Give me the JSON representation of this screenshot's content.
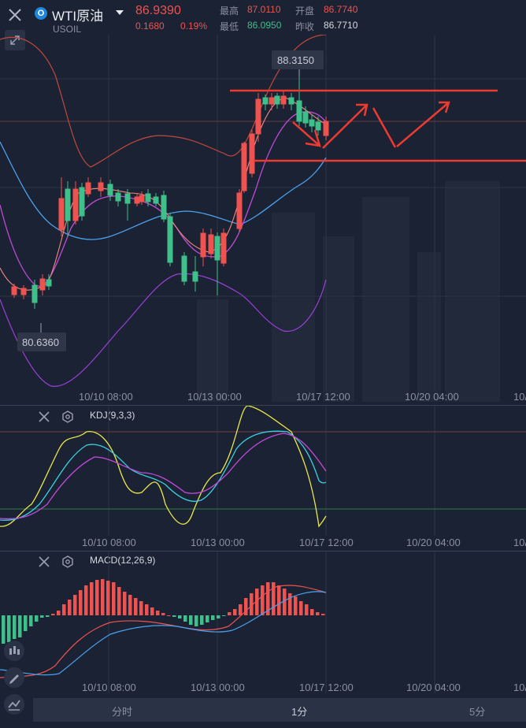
{
  "header": {
    "symbol_badge": "O",
    "symbol_name": "WTI原油",
    "symbol_code": "USOIL",
    "price": "86.9390",
    "change": "0.1680",
    "change_pct": "0.19%",
    "high_label": "最高",
    "high_value": "87.0110",
    "open_label": "开盘",
    "open_value": "86.7740",
    "low_label": "最低",
    "low_value": "86.0950",
    "prev_close_label": "昨收",
    "prev_close_value": "86.7710"
  },
  "main_chart": {
    "max_marker": "88.3150",
    "min_marker": "80.6360",
    "x_labels": [
      "10/10 08:00",
      "10/13 00:00",
      "10/17 12:00",
      "10/20 04:00",
      "10/"
    ]
  },
  "kdj": {
    "label": "KDJ(9,3,3)",
    "x_labels": [
      "10/10 08:00",
      "10/13 00:00",
      "10/17 12:00",
      "10/20 04:00",
      "10/"
    ]
  },
  "macd": {
    "label": "MACD(12,26,9)",
    "x_labels": [
      "10/10 08:00",
      "10/13 00:00",
      "10/17 12:00",
      "10/20 04:00",
      "10/"
    ]
  },
  "tabs": [
    "分时",
    "1分",
    "5分"
  ],
  "colors": {
    "background": "#1b2233",
    "up": "#ee5350",
    "down": "#3fbf8a",
    "ma_pink": "#f08a80",
    "boll_upper": "#c0483e",
    "boll_mid": "#4aa3f0",
    "boll_lower": "#9b3fd8",
    "kdj_k": "#e8e84a",
    "kdj_d": "#c04ad8",
    "kdj_j": "#3ad0e0",
    "annotation": "#ee3b32"
  },
  "icons": {
    "close": "close-icon",
    "expand": "expand-icon",
    "settings": "hexagon-settings-icon",
    "candle": "candlestick-icon",
    "draw": "pen-icon",
    "indicator": "line-indicator-icon"
  }
}
